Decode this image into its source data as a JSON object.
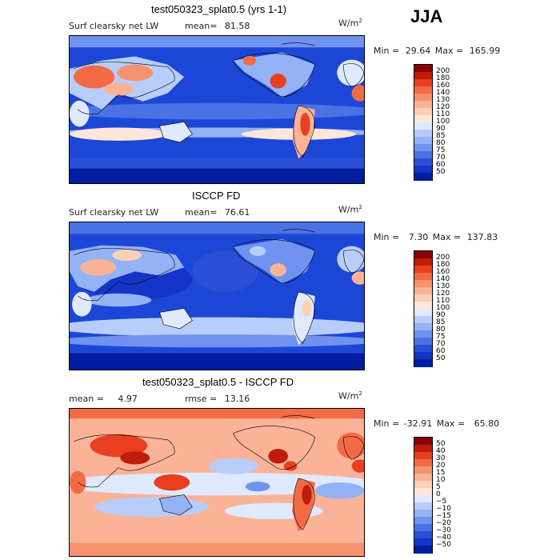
{
  "season": "JJA",
  "panels": [
    {
      "title": "test050323_splat0.5 (yrs 1-1)",
      "variable": "Surf clearsky net LW",
      "stat_label": "mean=",
      "stat_value": "81.58",
      "units": "W/m",
      "units_exp": "2",
      "min_label": "Min =",
      "min_value": "29.64",
      "max_label": "Max =",
      "max_value": "165.99",
      "legend": {
        "levels": [
          "200",
          "180",
          "160",
          "140",
          "130",
          "120",
          "110",
          "100",
          "90",
          "85",
          "80",
          "75",
          "70",
          "60",
          "50"
        ],
        "colors": [
          "#8b0000",
          "#c01c0a",
          "#e8401e",
          "#f36b45",
          "#f7926e",
          "#fab397",
          "#fdd0b8",
          "#fde7da",
          "#dfe9ff",
          "#b8cdfb",
          "#94b2f6",
          "#6f93ee",
          "#4a72e4",
          "#2a4fd6",
          "#1434c8",
          "#001d9f"
        ]
      }
    },
    {
      "title": "ISCCP FD",
      "variable": "Surf clearsky net LW",
      "stat_label": "mean=",
      "stat_value": "76.61",
      "units": "W/m",
      "units_exp": "2",
      "min_label": "Min =",
      "min_value": "7.30",
      "max_label": "Max =",
      "max_value": "137.83",
      "legend": {
        "levels": [
          "200",
          "180",
          "160",
          "140",
          "130",
          "120",
          "110",
          "100",
          "90",
          "85",
          "80",
          "75",
          "70",
          "60",
          "50"
        ],
        "colors": [
          "#8b0000",
          "#c01c0a",
          "#e8401e",
          "#f36b45",
          "#f7926e",
          "#fab397",
          "#fdd0b8",
          "#fde7da",
          "#dfe9ff",
          "#b8cdfb",
          "#94b2f6",
          "#6f93ee",
          "#4a72e4",
          "#2a4fd6",
          "#1434c8",
          "#001d9f"
        ]
      }
    },
    {
      "title": "test050323_splat0.5 - ISCCP FD",
      "variable": "",
      "stat_label": "mean =",
      "stat_value": "4.97",
      "stat2_label": "rmse =",
      "stat2_value": "13.16",
      "units": "W/m",
      "units_exp": "2",
      "min_label": "Min =",
      "min_value": "-32.91",
      "max_label": "Max =",
      "max_value": "65.80",
      "legend": {
        "levels": [
          "50",
          "40",
          "30",
          "20",
          "15",
          "10",
          "5",
          "0",
          "−5",
          "−10",
          "−15",
          "−20",
          "−30",
          "−40",
          "−50"
        ],
        "colors": [
          "#8b0000",
          "#c01c0a",
          "#e8401e",
          "#f36b45",
          "#f7926e",
          "#fab397",
          "#fdd0b8",
          "#fde7da",
          "#dfe9ff",
          "#b8cdfb",
          "#94b2f6",
          "#6f93ee",
          "#4a72e4",
          "#2a4fd6",
          "#1434c8",
          "#001d9f"
        ]
      }
    }
  ]
}
